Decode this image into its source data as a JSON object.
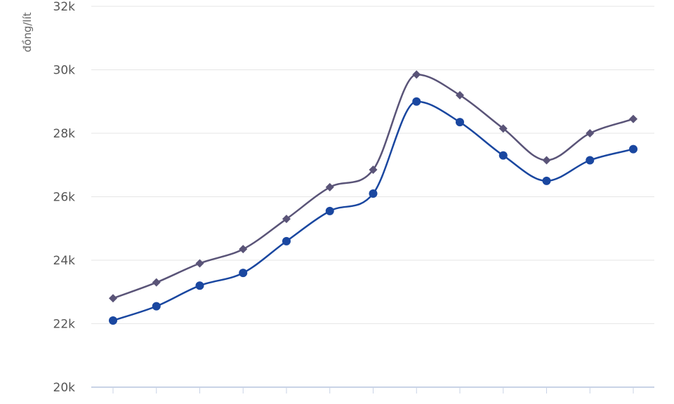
{
  "chart_data": {
    "type": "line",
    "title": "",
    "xlabel": "",
    "ylabel": "đồng/lít",
    "ylim": [
      20000,
      32000
    ],
    "y_ticks": [
      20000,
      22000,
      24000,
      26000,
      28000,
      30000,
      32000
    ],
    "y_tick_labels": [
      "20k",
      "22k",
      "24k",
      "26k",
      "28k",
      "30k",
      "32k"
    ],
    "grid": true,
    "series": [
      {
        "color": "#5a5478",
        "marker": "diamond",
        "values": [
          22800,
          23300,
          23900,
          24350,
          25300,
          26300,
          26850,
          29850,
          29200,
          28150,
          27150,
          28000,
          28450
        ]
      },
      {
        "color": "#1a47a0",
        "marker": "circle",
        "values": [
          22100,
          22550,
          23200,
          23600,
          24600,
          25550,
          26100,
          29000,
          28350,
          27300,
          26500,
          27150,
          27500
        ]
      }
    ]
  }
}
